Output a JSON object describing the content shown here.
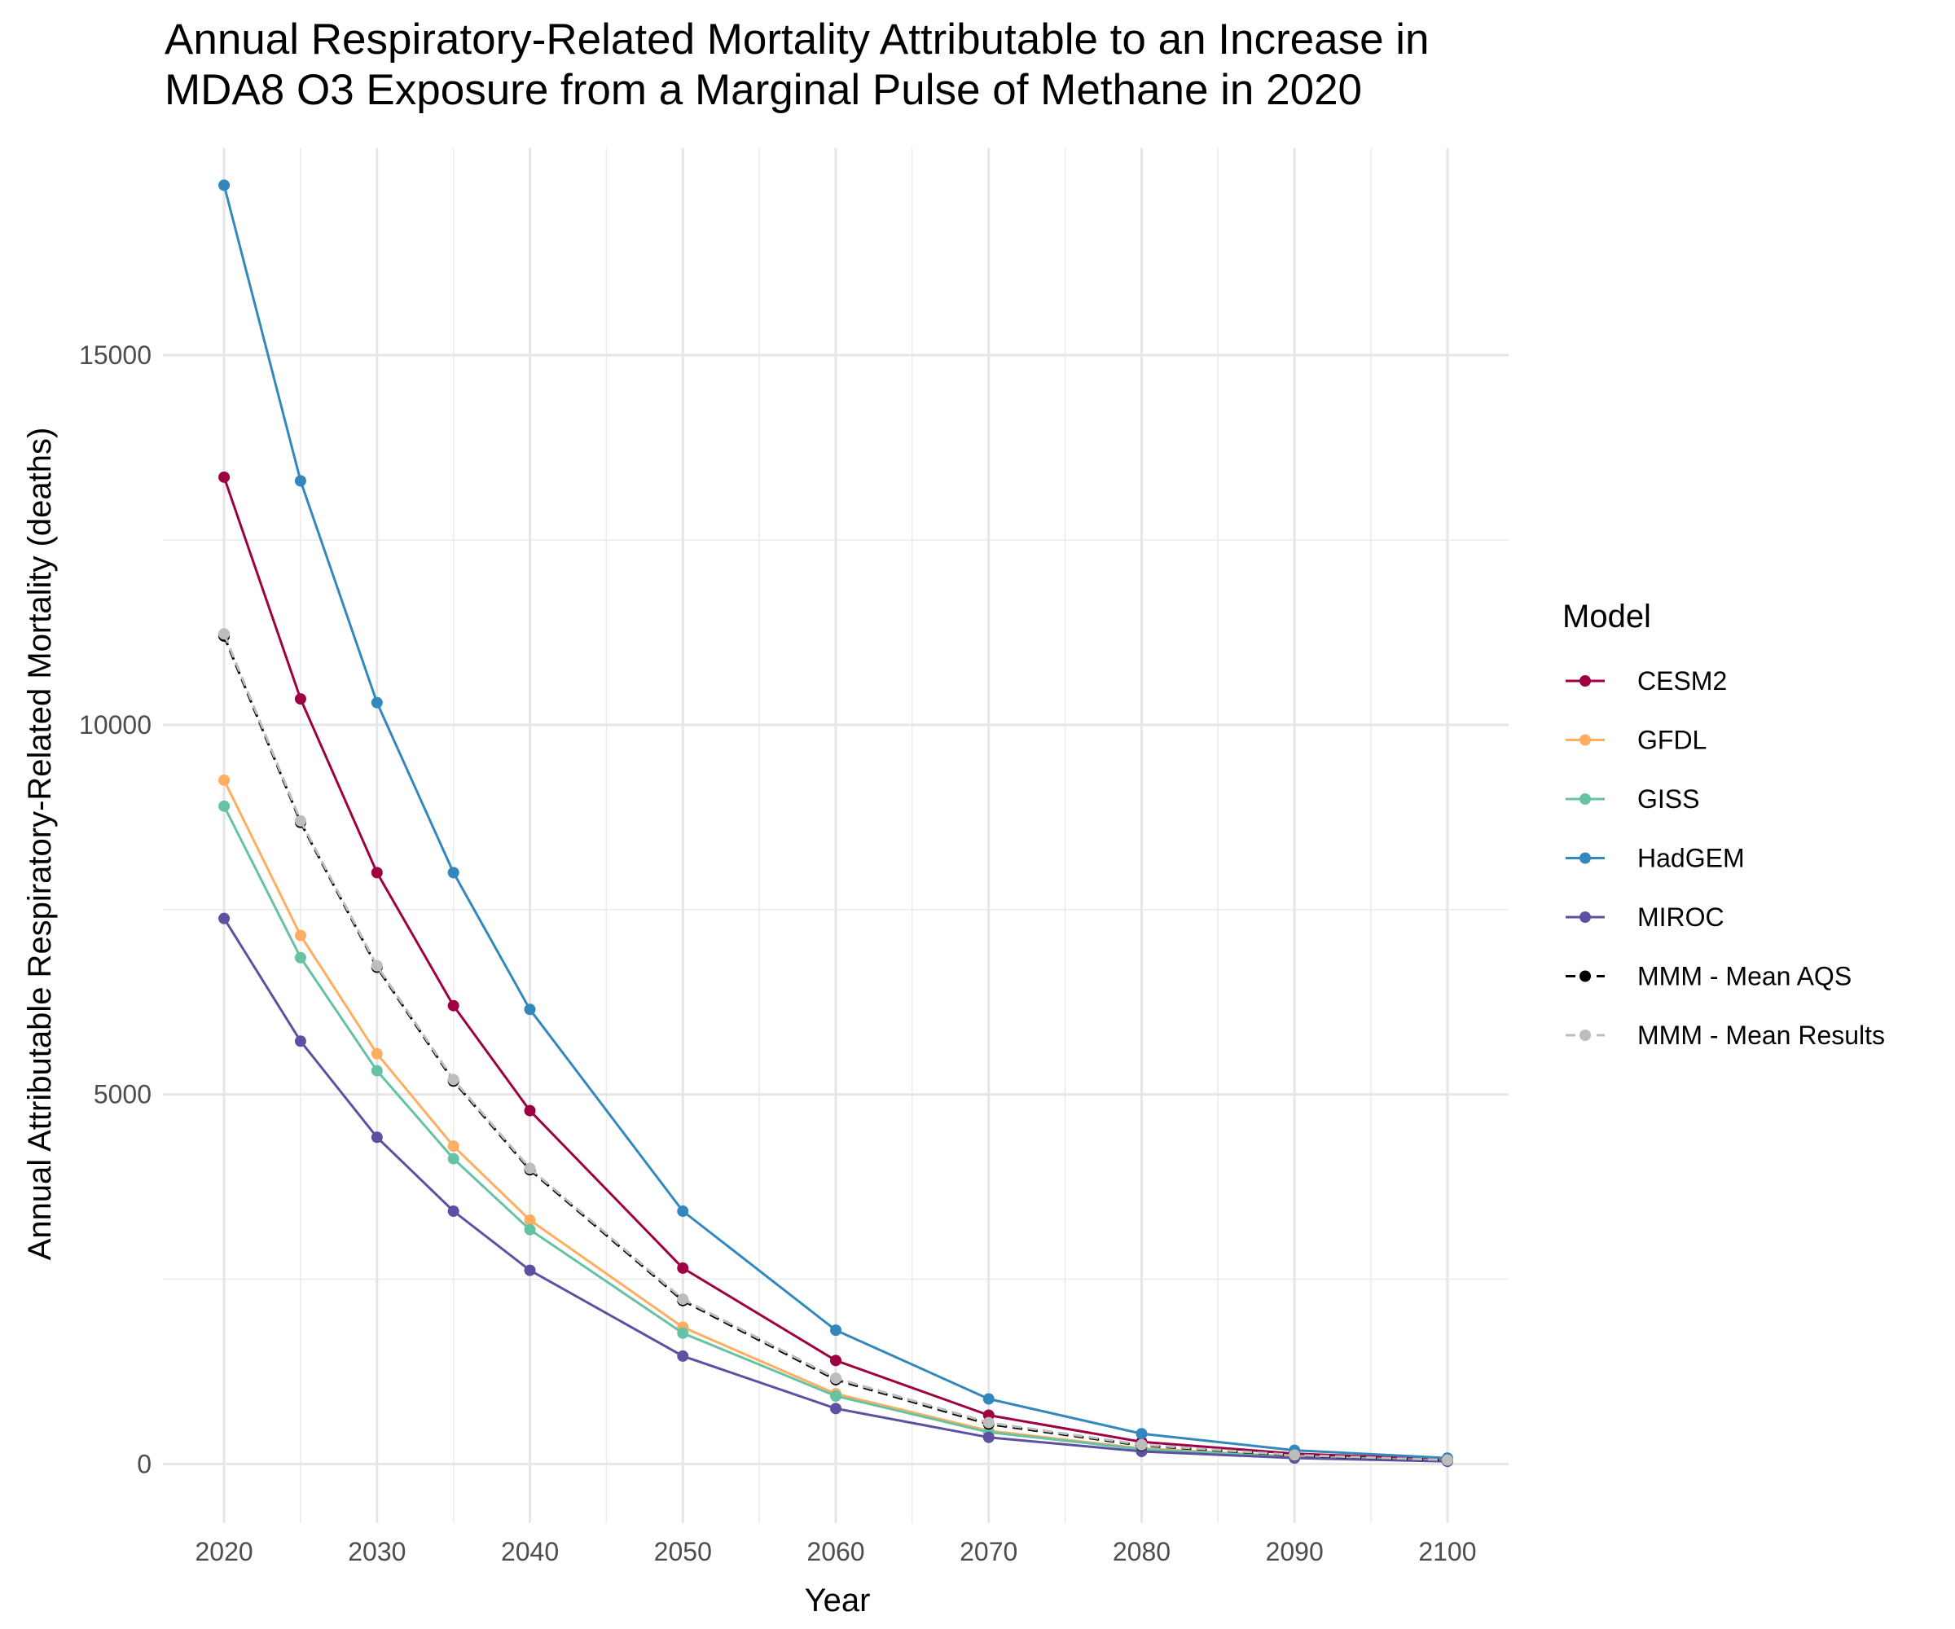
{
  "chart_data": {
    "type": "line",
    "title": "Annual Respiratory-Related Mortality Attributable to an Increase in\nMDA8 O3 Exposure from a Marginal Pulse of Methane in 2020",
    "xlabel": "Year",
    "ylabel": "Annual Attributable Respiratory-Related Mortality (deaths)",
    "x": [
      2020,
      2025,
      2030,
      2035,
      2040,
      2050,
      2060,
      2070,
      2080,
      2090,
      2100
    ],
    "xticks": [
      2020,
      2030,
      2040,
      2050,
      2060,
      2070,
      2080,
      2090,
      2100
    ],
    "yticks": [
      0,
      5000,
      10000,
      15000
    ],
    "xlim": [
      2016,
      2104
    ],
    "ylim": [
      -800,
      17800
    ],
    "grid": true,
    "legend": {
      "title": "Model",
      "placement": "right"
    },
    "series": [
      {
        "name": "CESM2",
        "color": "#9e0142",
        "dashed": false,
        "values": [
          13350,
          10350,
          8000,
          6200,
          4780,
          2650,
          1400,
          660,
          300,
          140,
          60
        ]
      },
      {
        "name": "GFDL",
        "color": "#fdae61",
        "dashed": false,
        "values": [
          9250,
          7150,
          5550,
          4300,
          3300,
          1850,
          950,
          450,
          210,
          100,
          45
        ]
      },
      {
        "name": "GISS",
        "color": "#66c2a5",
        "dashed": false,
        "values": [
          8900,
          6850,
          5320,
          4130,
          3170,
          1770,
          920,
          430,
          200,
          95,
          42
        ]
      },
      {
        "name": "HadGEM",
        "color": "#3288bd",
        "dashed": false,
        "values": [
          17300,
          13300,
          10300,
          8000,
          6150,
          3420,
          1810,
          880,
          410,
          185,
          80
        ]
      },
      {
        "name": "MIROC",
        "color": "#5e4fa2",
        "dashed": false,
        "values": [
          7380,
          5720,
          4420,
          3420,
          2620,
          1460,
          750,
          360,
          170,
          80,
          35
        ]
      },
      {
        "name": "MMM - Mean AQS",
        "color": "#000000",
        "dashed": true,
        "values": [
          11200,
          8680,
          6720,
          5180,
          3980,
          2210,
          1140,
          540,
          250,
          115,
          50
        ]
      },
      {
        "name": "MMM - Mean Results",
        "color": "#bdbdbd",
        "dashed": true,
        "values": [
          11230,
          8700,
          6740,
          5200,
          4000,
          2230,
          1160,
          560,
          260,
          120,
          52
        ]
      }
    ]
  }
}
